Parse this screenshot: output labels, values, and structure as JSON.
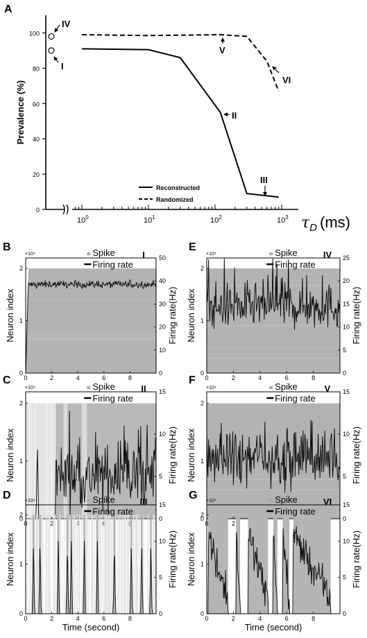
{
  "chart_data": [
    {
      "panel": "A",
      "type": "line",
      "ylabel": "Prevalence (%)",
      "xlabel": "τ_D (ms)",
      "x_scale": "log",
      "ylim": [
        0,
        110
      ],
      "x_tick_labels": [
        "10^0",
        "10^1",
        "10^2",
        "10^3"
      ],
      "y_ticks": [
        "0",
        "20",
        "40",
        "60",
        "80",
        "100"
      ],
      "series": [
        {
          "name": "Reconstructed",
          "style": "solid",
          "x": [
            1,
            10,
            30,
            120,
            300,
            900
          ],
          "y": [
            91,
            90.5,
            86,
            55,
            9,
            7
          ]
        },
        {
          "name": "Randomized",
          "style": "dashed",
          "x": [
            1,
            10,
            120,
            300,
            600,
            900
          ],
          "y": [
            99,
            98.5,
            99,
            98,
            84,
            67
          ]
        }
      ],
      "points": [
        {
          "label": "IV",
          "y": 98
        },
        {
          "label": "I",
          "y": 90
        }
      ],
      "annotations": [
        "IV",
        "I",
        "V",
        "VI",
        "II",
        "III"
      ]
    },
    {
      "panel": "B",
      "marker": "I",
      "type": "raster-line",
      "legend": [
        "Spike",
        "Firing rate"
      ],
      "ylabel_left": "Neuron index",
      "ylabel_right": "Firing rate(Hz)",
      "multiplier": "×10⁴",
      "left_ticks": [
        "0",
        "1",
        "2"
      ],
      "right_ticks": [
        "0",
        "10",
        "20",
        "30",
        "40",
        "50"
      ],
      "right_max": 50,
      "x_ticks": [
        "0",
        "2",
        "4",
        "6",
        "8"
      ],
      "mode": "steady",
      "rate_mean": 38.5,
      "rate_noise": 1.2,
      "raster": "full"
    },
    {
      "panel": "C",
      "marker": "II",
      "type": "raster-line",
      "legend": [
        "Spike",
        "Firing rate"
      ],
      "ylabel_left": "Neuron index",
      "ylabel_right": "Firing rate(Hz)",
      "multiplier": "×10⁴",
      "left_ticks": [
        "0",
        "1",
        "2"
      ],
      "right_ticks": [
        "0",
        "5",
        "10",
        "15"
      ],
      "right_max": 15,
      "x_ticks": [
        "0",
        "2",
        "4",
        "6",
        "8"
      ],
      "mode": "bursty-late",
      "raster": "late-dense"
    },
    {
      "panel": "D",
      "marker": "III",
      "type": "raster-line",
      "legend": [
        "Spike",
        "Firing rate"
      ],
      "ylabel_left": "Neuron index",
      "ylabel_right": "Firing rate(Hz)",
      "multiplier": "×10⁴",
      "left_ticks": [
        "0",
        "1",
        "2"
      ],
      "right_ticks": [
        "0",
        "5",
        "10",
        "15"
      ],
      "right_max": 15,
      "x_ticks": [
        "0",
        "2",
        "4",
        "6",
        "8"
      ],
      "xlabel": "Time (second)",
      "mode": "spikes",
      "spike_times": [
        0.6,
        1.1,
        2.5,
        3.2,
        3.5,
        4.5,
        5.5,
        6.8,
        8.1,
        8.9,
        9.6
      ],
      "raster": "sparse"
    },
    {
      "panel": "E",
      "marker": "IV",
      "type": "raster-line",
      "legend": [
        "Spike",
        "Firing rate"
      ],
      "ylabel_left": "Neuron index",
      "ylabel_right": "Firing rate(Hz)",
      "multiplier": "×10⁴",
      "left_ticks": [
        "0",
        "1",
        "2"
      ],
      "right_ticks": [
        "0",
        "5",
        "10",
        "15",
        "20",
        "25"
      ],
      "right_max": 25,
      "x_ticks": [
        "0",
        "2",
        "4",
        "6",
        "8"
      ],
      "mode": "noisy",
      "rate_mean": 14.5,
      "rate_noise": 3.5,
      "raster": "full"
    },
    {
      "panel": "F",
      "marker": "V",
      "type": "raster-line",
      "legend": [
        "Spike",
        "Firing rate"
      ],
      "ylabel_left": "Neuron index",
      "ylabel_right": "Firing rate(Hz)",
      "multiplier": "×10⁴",
      "left_ticks": [
        "0",
        "1",
        "2"
      ],
      "right_ticks": [
        "0",
        "5",
        "10",
        "15"
      ],
      "right_max": 15,
      "x_ticks": [
        "0",
        "2",
        "4",
        "6",
        "8"
      ],
      "mode": "noisy",
      "rate_mean": 7,
      "rate_noise": 2.2,
      "raster": "full"
    },
    {
      "panel": "G",
      "marker": "VI",
      "type": "raster-line",
      "legend": [
        "Spike",
        "Firing rate"
      ],
      "ylabel_left": "Neuron index",
      "ylabel_right": "Firing rate(Hz)",
      "multiplier": "×10⁴",
      "left_ticks": [
        "0",
        "1",
        "2"
      ],
      "right_ticks": [
        "0",
        "5",
        "10",
        "15"
      ],
      "right_max": 15,
      "x_ticks": [
        "0",
        "2",
        "4",
        "6",
        "8"
      ],
      "xlabel": "Time (second)",
      "mode": "bursts",
      "bursts": [
        [
          0.1,
          1.6
        ],
        [
          2.2,
          2.5
        ],
        [
          3.1,
          4.6
        ],
        [
          5.0,
          5.3
        ],
        [
          5.7,
          6.2
        ],
        [
          6.5,
          9.3
        ]
      ],
      "raster": "bursts"
    }
  ]
}
